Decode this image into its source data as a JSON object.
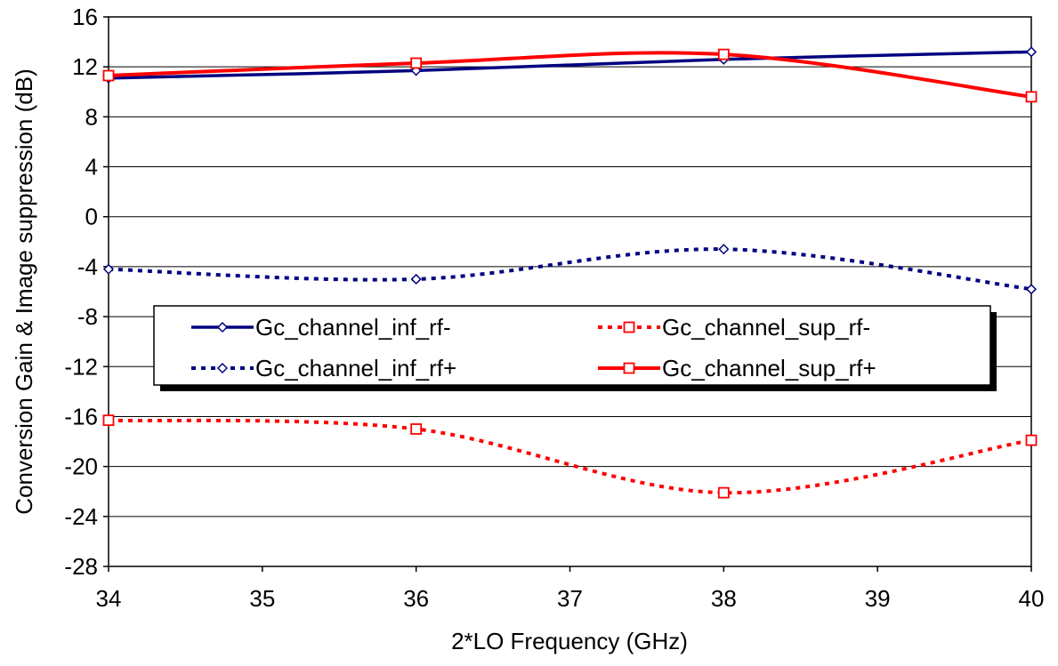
{
  "chart_data": {
    "type": "line",
    "title": "",
    "xlabel": "2*LO Frequency (GHz)",
    "ylabel": "Conversion Gain & Image suppression (dB)",
    "xlim": [
      34,
      40
    ],
    "ylim": [
      -28,
      16
    ],
    "x_ticks": [
      "34",
      "35",
      "36",
      "37",
      "38",
      "39",
      "40"
    ],
    "y_ticks": [
      "16",
      "12",
      "8",
      "4",
      "0",
      "-4",
      "-8",
      "-12",
      "-16",
      "-20",
      "-24",
      "-28"
    ],
    "grid": "horizontal",
    "legend_position": "center-left, boxed",
    "series": [
      {
        "name": "Gc_channel_inf_rf-",
        "x": [
          34,
          36,
          38,
          40
        ],
        "y": [
          11.1,
          11.7,
          12.6,
          13.2
        ],
        "color": "#000080",
        "dash": "solid",
        "marker": "diamond"
      },
      {
        "name": "Gc_channel_sup_rf-",
        "x": [
          34,
          36,
          38,
          40
        ],
        "y": [
          -16.3,
          -17.0,
          -22.1,
          -17.9
        ],
        "color": "#ff0000",
        "dash": "dotted",
        "marker": "square"
      },
      {
        "name": "Gc_channel_inf_rf+",
        "x": [
          34,
          36,
          38,
          40
        ],
        "y": [
          -4.2,
          -5.0,
          -2.6,
          -5.8
        ],
        "color": "#000080",
        "dash": "dotted",
        "marker": "diamond"
      },
      {
        "name": "Gc_channel_sup_rf+",
        "x": [
          34,
          36,
          38,
          40
        ],
        "y": [
          11.3,
          12.3,
          13.0,
          9.6
        ],
        "color": "#ff0000",
        "dash": "solid",
        "marker": "square"
      }
    ]
  }
}
